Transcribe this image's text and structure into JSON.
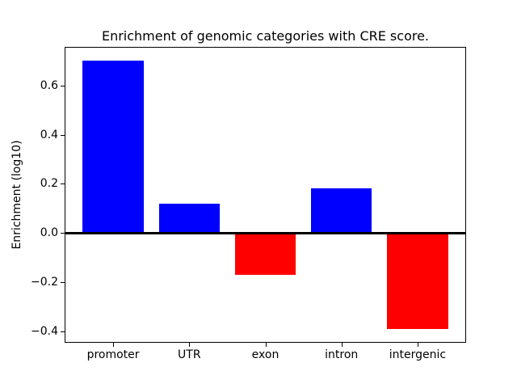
{
  "chart_data": {
    "type": "bar",
    "title": "Enrichment of genomic categories with CRE score.",
    "ylabel": "Enrichment (log10)",
    "xlabel": "",
    "categories": [
      "promoter",
      "UTR",
      "exon",
      "intron",
      "intergenic"
    ],
    "values": [
      0.7,
      0.12,
      -0.17,
      0.18,
      -0.39
    ],
    "bar_colors": [
      "#0000ff",
      "#0000ff",
      "#ff0000",
      "#0000ff",
      "#ff0000"
    ],
    "positive_color": "#0000ff",
    "negative_color": "#ff0000",
    "ylim": [
      -0.444,
      0.754
    ],
    "yticks": [
      -0.4,
      -0.2,
      0.0,
      0.2,
      0.4,
      0.6
    ],
    "ytick_labels": [
      "−0.4",
      "−0.2",
      "0.0",
      "0.2",
      "0.4",
      "0.6"
    ],
    "bar_width_fraction": 0.8,
    "x_edge_margin": 0.627,
    "grid": false,
    "zero_line": true,
    "legend_position": "none"
  },
  "colors": {
    "background": "#ffffff",
    "axis": "#000000",
    "text": "#000000"
  }
}
